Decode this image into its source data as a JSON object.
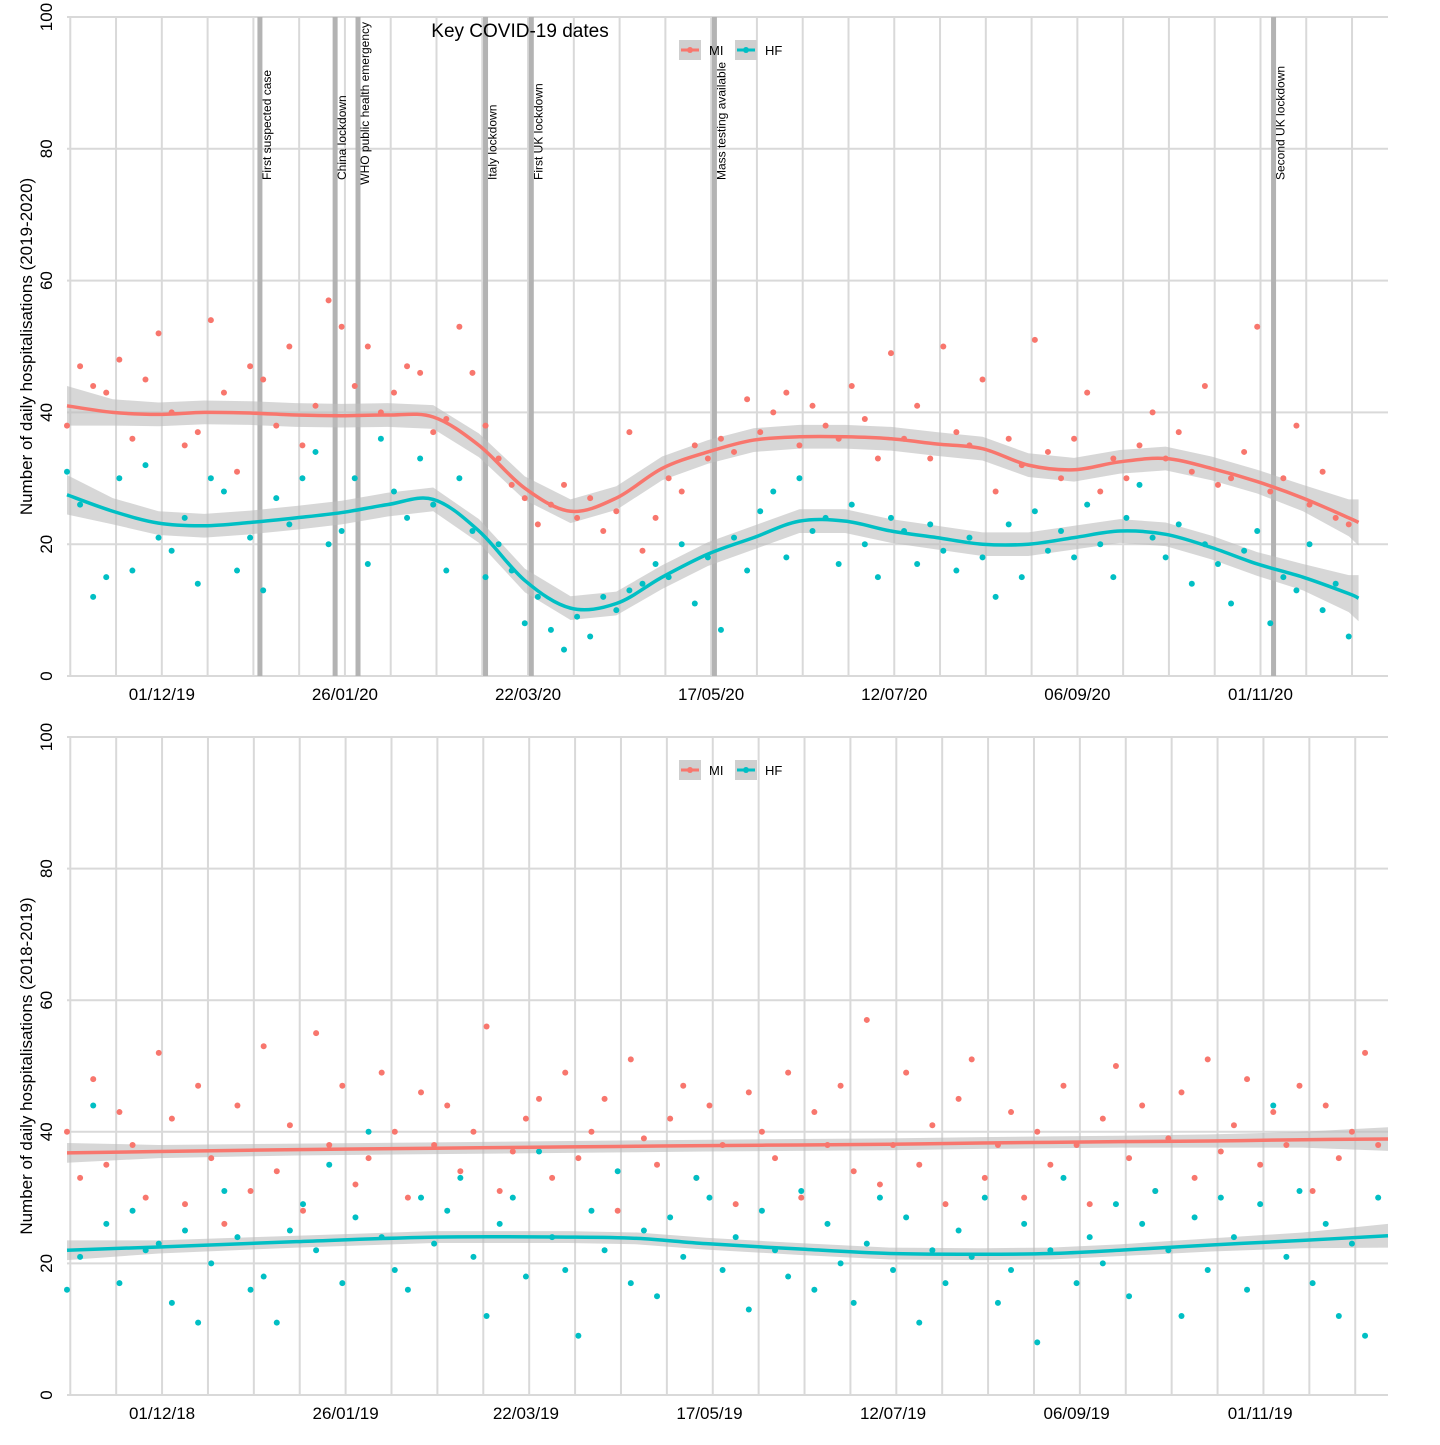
{
  "colors": {
    "MI": "#F8766D",
    "HF": "#00BFC4",
    "event_line": "#b3b3b3",
    "grid": "#d9d9d9",
    "ribbon": "#bdbdbd"
  },
  "chart_data": [
    {
      "type": "scatter",
      "title": "Key COVID-19 dates",
      "xlabel": "",
      "ylabel": "Number of daily hospitalisations (2019-2020)",
      "ylim": [
        0,
        100
      ],
      "yticks": [
        "0",
        "20",
        "40",
        "60",
        "80",
        "100"
      ],
      "xlim": [
        "2019-11-02",
        "2020-12-10"
      ],
      "xticks": [
        {
          "date": "2019-12-01",
          "label": "01/12/19"
        },
        {
          "date": "2020-01-26",
          "label": "26/01/20"
        },
        {
          "date": "2020-03-22",
          "label": "22/03/20"
        },
        {
          "date": "2020-05-17",
          "label": "17/05/20"
        },
        {
          "date": "2020-07-12",
          "label": "12/07/20"
        },
        {
          "date": "2020-09-06",
          "label": "06/09/20"
        },
        {
          "date": "2020-11-01",
          "label": "01/11/20"
        }
      ],
      "grid": true,
      "legend": {
        "position": "top",
        "entries": [
          "MI",
          "HF"
        ]
      },
      "events": [
        {
          "date": "2019-12-31",
          "label": "First suspected case"
        },
        {
          "date": "2020-01-23",
          "label": "China lockdown"
        },
        {
          "date": "2020-01-30",
          "label": "WHO public health emergency"
        },
        {
          "date": "2020-03-09",
          "label": "Italy lockdown"
        },
        {
          "date": "2020-03-23",
          "label": "First UK lockdown"
        },
        {
          "date": "2020-05-18",
          "label": "Mass testing available"
        },
        {
          "date": "2020-11-05",
          "label": "Second UK lockdown"
        }
      ],
      "x": [
        "2019-11-02",
        "2019-11-06",
        "2019-11-10",
        "2019-11-14",
        "2019-11-18",
        "2019-11-22",
        "2019-11-26",
        "2019-11-30",
        "2019-12-04",
        "2019-12-08",
        "2019-12-12",
        "2019-12-16",
        "2019-12-20",
        "2019-12-24",
        "2019-12-28",
        "2020-01-01",
        "2020-01-05",
        "2020-01-09",
        "2020-01-13",
        "2020-01-17",
        "2020-01-21",
        "2020-01-25",
        "2020-01-29",
        "2020-02-02",
        "2020-02-06",
        "2020-02-10",
        "2020-02-14",
        "2020-02-18",
        "2020-02-22",
        "2020-02-26",
        "2020-03-01",
        "2020-03-05",
        "2020-03-09",
        "2020-03-13",
        "2020-03-17",
        "2020-03-21",
        "2020-03-25",
        "2020-03-29",
        "2020-04-02",
        "2020-04-06",
        "2020-04-10",
        "2020-04-14",
        "2020-04-18",
        "2020-04-22",
        "2020-04-26",
        "2020-04-30",
        "2020-05-04",
        "2020-05-08",
        "2020-05-12",
        "2020-05-16",
        "2020-05-20",
        "2020-05-24",
        "2020-05-28",
        "2020-06-01",
        "2020-06-05",
        "2020-06-09",
        "2020-06-13",
        "2020-06-17",
        "2020-06-21",
        "2020-06-25",
        "2020-06-29",
        "2020-07-03",
        "2020-07-07",
        "2020-07-11",
        "2020-07-15",
        "2020-07-19",
        "2020-07-23",
        "2020-07-27",
        "2020-07-31",
        "2020-08-04",
        "2020-08-08",
        "2020-08-12",
        "2020-08-16",
        "2020-08-20",
        "2020-08-24",
        "2020-08-28",
        "2020-09-01",
        "2020-09-05",
        "2020-09-09",
        "2020-09-13",
        "2020-09-17",
        "2020-09-21",
        "2020-09-25",
        "2020-09-29",
        "2020-10-03",
        "2020-10-07",
        "2020-10-11",
        "2020-10-15",
        "2020-10-19",
        "2020-10-23",
        "2020-10-27",
        "2020-10-31",
        "2020-11-04",
        "2020-11-08",
        "2020-11-12",
        "2020-11-16",
        "2020-11-20",
        "2020-11-24",
        "2020-11-28"
      ],
      "series": [
        {
          "name": "MI",
          "values": [
            38,
            47,
            44,
            43,
            48,
            36,
            45,
            52,
            40,
            35,
            37,
            54,
            43,
            31,
            47,
            45,
            38,
            50,
            35,
            41,
            57,
            53,
            44,
            50,
            40,
            43,
            47,
            46,
            37,
            39,
            53,
            46,
            38,
            33,
            29,
            27,
            23,
            26,
            29,
            24,
            27,
            22,
            25,
            37,
            19,
            24,
            30,
            28,
            35,
            33,
            36,
            34,
            42,
            37,
            40,
            43,
            35,
            41,
            38,
            36,
            44,
            39,
            33,
            49,
            36,
            41,
            33,
            50,
            37,
            35,
            45,
            28,
            36,
            32,
            51,
            34,
            30,
            36,
            43,
            28,
            33,
            30,
            35,
            40,
            33,
            37,
            31,
            44,
            29,
            30,
            34,
            53,
            28,
            30,
            38,
            26,
            31,
            24,
            23
          ]
        },
        {
          "name": "HF",
          "values": [
            31,
            26,
            12,
            15,
            30,
            16,
            32,
            21,
            19,
            24,
            14,
            30,
            28,
            16,
            21,
            13,
            27,
            23,
            30,
            34,
            20,
            22,
            30,
            17,
            36,
            28,
            24,
            33,
            26,
            16,
            30,
            22,
            15,
            20,
            16,
            8,
            12,
            7,
            4,
            9,
            6,
            12,
            10,
            13,
            14,
            17,
            15,
            20,
            11,
            18,
            7,
            21,
            16,
            25,
            28,
            18,
            30,
            22,
            24,
            17,
            26,
            20,
            15,
            24,
            22,
            17,
            23,
            19,
            16,
            21,
            18,
            12,
            23,
            15,
            25,
            19,
            22,
            18,
            26,
            20,
            15,
            24,
            29,
            21,
            18,
            23,
            14,
            20,
            17,
            11,
            19,
            22,
            8,
            15,
            13,
            20,
            10,
            14,
            6
          ]
        }
      ],
      "smooth": {
        "x": [
          "2019-11-02",
          "2019-11-16",
          "2019-11-30",
          "2019-12-14",
          "2019-12-28",
          "2020-01-11",
          "2020-01-25",
          "2020-02-08",
          "2020-02-22",
          "2020-03-07",
          "2020-03-21",
          "2020-04-04",
          "2020-04-18",
          "2020-05-02",
          "2020-05-16",
          "2020-05-30",
          "2020-06-13",
          "2020-06-27",
          "2020-07-11",
          "2020-07-25",
          "2020-08-08",
          "2020-08-22",
          "2020-09-05",
          "2020-09-19",
          "2020-10-03",
          "2020-10-17",
          "2020-10-31",
          "2020-11-14",
          "2020-11-28",
          "2020-12-01"
        ],
        "MI": [
          41,
          40,
          39.7,
          40,
          39.9,
          39.6,
          39.5,
          39.6,
          39.3,
          35,
          28.5,
          25,
          27,
          31.5,
          34,
          35.8,
          36.3,
          36.3,
          36,
          35.2,
          34.5,
          32,
          31.3,
          32.5,
          33,
          31.5,
          29.5,
          27,
          24,
          23.3
        ],
        "HF": [
          27.5,
          25,
          23.2,
          22.8,
          23.3,
          24,
          24.8,
          26,
          26.8,
          22,
          14.5,
          10.3,
          11,
          15,
          18.5,
          21,
          23.5,
          23.5,
          22,
          21,
          20,
          20,
          21,
          22,
          21.5,
          19.5,
          17,
          15,
          12.5,
          11.8
        ],
        "ci_halfwidth": [
          3,
          2,
          1.8,
          1.8,
          1.8,
          1.8,
          1.8,
          1.8,
          1.8,
          1.8,
          1.8,
          1.8,
          1.8,
          1.8,
          1.8,
          1.8,
          1.8,
          1.8,
          1.8,
          1.8,
          1.8,
          1.8,
          1.8,
          1.8,
          1.8,
          1.8,
          1.8,
          2,
          2.8,
          3.5
        ]
      }
    },
    {
      "type": "scatter",
      "title": "",
      "xlabel": "",
      "ylabel": "Number of daily hospitalisations (2018-2019)",
      "ylim": [
        0,
        100
      ],
      "yticks": [
        "0",
        "20",
        "40",
        "60",
        "80",
        "100"
      ],
      "xlim": [
        "2018-11-02",
        "2019-12-10"
      ],
      "xticks": [
        {
          "date": "2018-12-01",
          "label": "01/12/18"
        },
        {
          "date": "2019-01-26",
          "label": "26/01/19"
        },
        {
          "date": "2019-03-22",
          "label": "22/03/19"
        },
        {
          "date": "2019-05-17",
          "label": "17/05/19"
        },
        {
          "date": "2019-07-12",
          "label": "12/07/19"
        },
        {
          "date": "2019-09-06",
          "label": "06/09/19"
        },
        {
          "date": "2019-11-01",
          "label": "01/11/19"
        }
      ],
      "grid": true,
      "legend": {
        "position": "top",
        "entries": [
          "MI",
          "HF"
        ]
      },
      "events": [],
      "x": [
        "2018-11-02",
        "2018-11-06",
        "2018-11-10",
        "2018-11-14",
        "2018-11-18",
        "2018-11-22",
        "2018-11-26",
        "2018-11-30",
        "2018-12-04",
        "2018-12-08",
        "2018-12-12",
        "2018-12-16",
        "2018-12-20",
        "2018-12-24",
        "2018-12-28",
        "2019-01-01",
        "2019-01-05",
        "2019-01-09",
        "2019-01-13",
        "2019-01-17",
        "2019-01-21",
        "2019-01-25",
        "2019-01-29",
        "2019-02-02",
        "2019-02-06",
        "2019-02-10",
        "2019-02-14",
        "2019-02-18",
        "2019-02-22",
        "2019-02-26",
        "2019-03-02",
        "2019-03-06",
        "2019-03-10",
        "2019-03-14",
        "2019-03-18",
        "2019-03-22",
        "2019-03-26",
        "2019-03-30",
        "2019-04-03",
        "2019-04-07",
        "2019-04-11",
        "2019-04-15",
        "2019-04-19",
        "2019-04-23",
        "2019-04-27",
        "2019-05-01",
        "2019-05-05",
        "2019-05-09",
        "2019-05-13",
        "2019-05-17",
        "2019-05-21",
        "2019-05-25",
        "2019-05-29",
        "2019-06-02",
        "2019-06-06",
        "2019-06-10",
        "2019-06-14",
        "2019-06-18",
        "2019-06-22",
        "2019-06-26",
        "2019-06-30",
        "2019-07-04",
        "2019-07-08",
        "2019-07-12",
        "2019-07-16",
        "2019-07-20",
        "2019-07-24",
        "2019-07-28",
        "2019-08-01",
        "2019-08-05",
        "2019-08-09",
        "2019-08-13",
        "2019-08-17",
        "2019-08-21",
        "2019-08-25",
        "2019-08-29",
        "2019-09-02",
        "2019-09-06",
        "2019-09-10",
        "2019-09-14",
        "2019-09-18",
        "2019-09-22",
        "2019-09-26",
        "2019-09-30",
        "2019-10-04",
        "2019-10-08",
        "2019-10-12",
        "2019-10-16",
        "2019-10-20",
        "2019-10-24",
        "2019-10-28",
        "2019-11-01",
        "2019-11-05",
        "2019-11-09",
        "2019-11-13",
        "2019-11-17",
        "2019-11-21",
        "2019-11-25",
        "2019-11-29",
        "2019-12-03",
        "2019-12-07"
      ],
      "series": [
        {
          "name": "MI",
          "values": [
            40,
            33,
            48,
            35,
            43,
            38,
            30,
            52,
            42,
            29,
            47,
            36,
            26,
            44,
            31,
            53,
            34,
            41,
            28,
            55,
            38,
            47,
            32,
            36,
            49,
            40,
            30,
            46,
            38,
            44,
            34,
            40,
            56,
            31,
            37,
            42,
            45,
            33,
            49,
            36,
            40,
            45,
            28,
            51,
            39,
            35,
            42,
            47,
            33,
            44,
            38,
            29,
            46,
            40,
            36,
            49,
            30,
            43,
            38,
            47,
            34,
            57,
            32,
            38,
            49,
            35,
            41,
            29,
            45,
            51,
            33,
            38,
            43,
            30,
            40,
            35,
            47,
            38,
            29,
            42,
            50,
            36,
            44,
            31,
            39,
            46,
            33,
            51,
            37,
            41,
            48,
            35,
            43,
            38,
            47,
            31,
            44,
            36,
            40,
            52,
            38
          ]
        },
        {
          "name": "HF",
          "values": [
            16,
            21,
            44,
            26,
            17,
            28,
            22,
            23,
            14,
            25,
            11,
            20,
            31,
            24,
            16,
            18,
            11,
            25,
            29,
            22,
            35,
            17,
            27,
            40,
            24,
            19,
            16,
            30,
            23,
            28,
            33,
            21,
            12,
            26,
            30,
            18,
            37,
            24,
            19,
            9,
            28,
            22,
            34,
            17,
            25,
            15,
            27,
            21,
            33,
            30,
            19,
            24,
            13,
            28,
            22,
            18,
            31,
            16,
            26,
            20,
            14,
            23,
            30,
            19,
            27,
            11,
            22,
            17,
            25,
            21,
            30,
            14,
            19,
            26,
            8,
            22,
            33,
            17,
            24,
            20,
            29,
            15,
            26,
            31,
            22,
            12,
            27,
            19,
            30,
            24,
            16,
            29,
            44,
            21,
            31,
            17,
            26,
            12,
            23,
            9,
            30
          ]
        }
      ],
      "smooth": {
        "x": [
          "2018-11-02",
          "2018-11-30",
          "2019-01-11",
          "2019-02-22",
          "2019-04-04",
          "2019-04-25",
          "2019-05-16",
          "2019-06-13",
          "2019-07-11",
          "2019-08-08",
          "2019-08-29",
          "2019-09-19",
          "2019-10-17",
          "2019-11-14",
          "2019-12-10"
        ],
        "MI": [
          36.8,
          37,
          37.3,
          37.5,
          37.7,
          37.8,
          37.9,
          38,
          38.1,
          38.3,
          38.4,
          38.5,
          38.6,
          38.8,
          38.9
        ],
        "HF": [
          22,
          22.5,
          23.3,
          24,
          24,
          23.8,
          23,
          22.2,
          21.5,
          21.4,
          21.5,
          22,
          22.8,
          23.5,
          24.2
        ],
        "ci_halfwidth": [
          1.5,
          1,
          0.9,
          0.9,
          0.9,
          0.9,
          0.9,
          0.9,
          0.9,
          0.9,
          0.9,
          0.9,
          1,
          1.2,
          1.8
        ]
      }
    }
  ]
}
